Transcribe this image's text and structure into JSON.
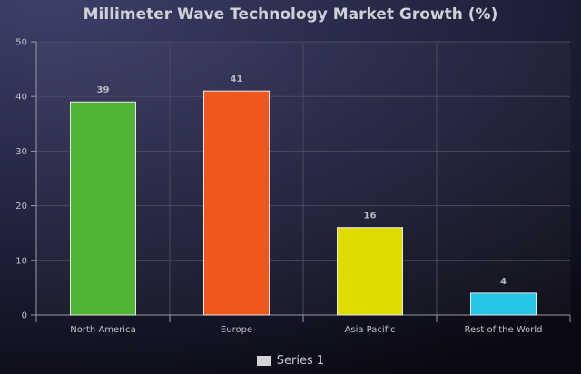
{
  "chart_data": {
    "type": "bar",
    "title": "Millimeter Wave Technology Market Growth (%)",
    "xlabel": "",
    "ylabel": "",
    "categories": [
      "North America",
      "Europe",
      "Asia Pacific",
      "Rest of the World"
    ],
    "series": [
      {
        "name": "Series 1",
        "values": [
          39,
          41,
          16,
          4
        ]
      }
    ],
    "bar_colors": [
      "#50b535",
      "#f0571d",
      "#dfdd00",
      "#26c6e6"
    ],
    "ylim": [
      0,
      50
    ],
    "yticks": [
      0,
      10,
      20,
      30,
      40,
      50
    ],
    "grid": true,
    "legend_position": "bottom"
  }
}
